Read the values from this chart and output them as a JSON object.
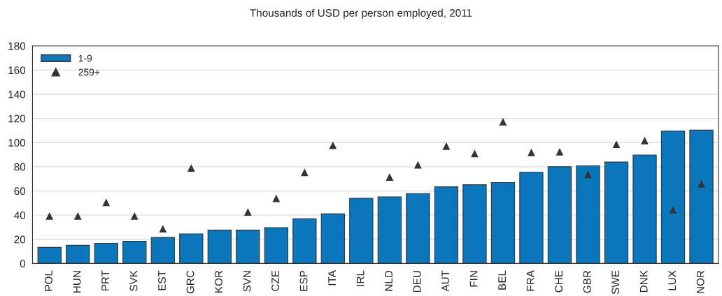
{
  "chart_data": {
    "type": "bar",
    "title": "Thousands of USD per person employed, 2011",
    "categories": [
      "POL",
      "HUN",
      "PRT",
      "SVK",
      "EST",
      "GRC",
      "KOR",
      "SVN",
      "CZE",
      "ESP",
      "ITA",
      "IRL",
      "NLD",
      "DEU",
      "AUT",
      "FIN",
      "BEL",
      "FRA",
      "CHE",
      "GBR",
      "SWE",
      "DNK",
      "LUX",
      "NOR"
    ],
    "series": [
      {
        "name": "1-9",
        "color": "#0a77bd",
        "values": [
          13.3,
          15,
          16.7,
          18.3,
          21.5,
          24.5,
          27.6,
          27.6,
          29.7,
          37,
          41,
          53.9,
          55,
          57.8,
          63.4,
          65.1,
          66.9,
          75.4,
          80,
          80.8,
          83.9,
          89.7,
          109.5,
          110.3
        ]
      },
      {
        "name": "259+",
        "type": "scatter",
        "color": "#333333",
        "marker": "triangle",
        "values": [
          39.2,
          39.2,
          50.6,
          39.2,
          28.7,
          79,
          null,
          42.6,
          53.8,
          75.3,
          97.7,
          null,
          71.5,
          81.6,
          97.1,
          90.9,
          117.2,
          91.9,
          92.4,
          73.6,
          98.6,
          101.6,
          44.4,
          65.9
        ]
      }
    ],
    "ylim": [
      0,
      180
    ],
    "yticks": [
      0,
      20,
      40,
      60,
      80,
      100,
      120,
      140,
      160,
      180
    ],
    "grid": "y",
    "legend": "top left"
  }
}
